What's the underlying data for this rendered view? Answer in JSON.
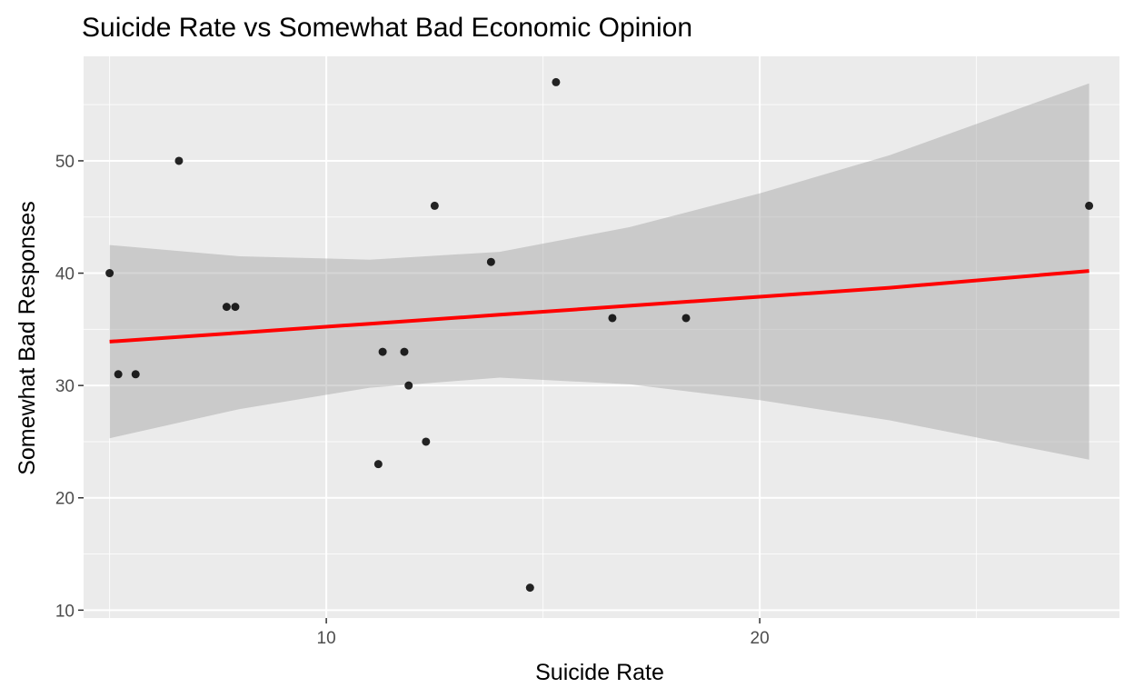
{
  "chart_data": {
    "type": "scatter",
    "title": "Suicide Rate vs Somewhat Bad Economic Opinion",
    "xlabel": "Suicide Rate",
    "ylabel": "Somewhat Bad Responses",
    "xlim": [
      4.4,
      28.3
    ],
    "ylim": [
      9.3,
      59.3
    ],
    "x_ticks": [
      10,
      20
    ],
    "y_ticks": [
      10,
      20,
      30,
      40,
      50
    ],
    "grid": true,
    "points": [
      {
        "x": 5.0,
        "y": 40
      },
      {
        "x": 5.2,
        "y": 31
      },
      {
        "x": 5.6,
        "y": 31
      },
      {
        "x": 6.6,
        "y": 50
      },
      {
        "x": 7.7,
        "y": 37
      },
      {
        "x": 7.9,
        "y": 37
      },
      {
        "x": 11.2,
        "y": 23
      },
      {
        "x": 11.3,
        "y": 33
      },
      {
        "x": 11.8,
        "y": 33
      },
      {
        "x": 11.9,
        "y": 30
      },
      {
        "x": 12.3,
        "y": 25
      },
      {
        "x": 12.5,
        "y": 46
      },
      {
        "x": 13.8,
        "y": 41
      },
      {
        "x": 14.7,
        "y": 12
      },
      {
        "x": 15.3,
        "y": 57
      },
      {
        "x": 16.6,
        "y": 36
      },
      {
        "x": 18.3,
        "y": 36
      },
      {
        "x": 27.6,
        "y": 46
      }
    ],
    "trend": {
      "method": "lm",
      "color": "#ff0000",
      "band_color": "#999999",
      "x": [
        5.0,
        8.0,
        11.0,
        14.0,
        17.0,
        20.0,
        23.0,
        27.6
      ],
      "fit": [
        33.9,
        34.7,
        35.5,
        36.3,
        37.1,
        37.9,
        38.7,
        40.2
      ],
      "lower": [
        25.3,
        27.9,
        29.8,
        30.7,
        30.1,
        28.7,
        26.9,
        23.4
      ],
      "upper": [
        42.5,
        41.5,
        41.2,
        41.9,
        44.1,
        47.1,
        50.5,
        56.9
      ]
    },
    "colors": {
      "panel_bg": "#ebebeb",
      "grid": "#ffffff",
      "point": "#000000"
    }
  }
}
